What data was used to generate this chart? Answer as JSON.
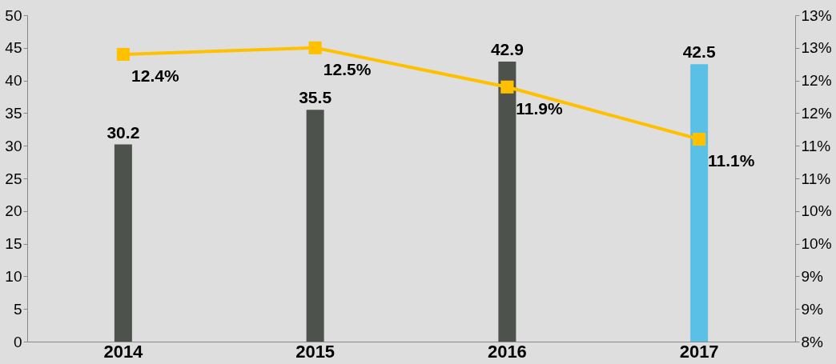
{
  "chart_data": {
    "type": "bar",
    "categories": [
      "2014",
      "2015",
      "2016",
      "2017"
    ],
    "series": [
      {
        "colors": [
          "#4d524d",
          "#4d524d",
          "#4d524d",
          "#5bc0e6"
        ],
        "values": [
          30.2,
          35.5,
          42.9,
          42.5
        ]
      },
      {
        "type": "line",
        "axis": "y2",
        "color": "#ffc000",
        "values": [
          12.4,
          12.5,
          11.9,
          11.1
        ],
        "value_labels": [
          "12.4%",
          "12.5%",
          "11.9%",
          "11.1%"
        ]
      }
    ],
    "ylim": [
      0,
      50
    ],
    "yticks": [
      0,
      5,
      10,
      15,
      20,
      25,
      30,
      35,
      40,
      45,
      50
    ],
    "y2lim": [
      8,
      13
    ],
    "y2ticks": [
      {
        "value": 8,
        "label": "8%"
      },
      {
        "value": 8.5,
        "label": "9%"
      },
      {
        "value": 9,
        "label": "9%"
      },
      {
        "value": 9.5,
        "label": "10%"
      },
      {
        "value": 10,
        "label": "10%"
      },
      {
        "value": 10.5,
        "label": "11%"
      },
      {
        "value": 11,
        "label": "11%"
      },
      {
        "value": 11.5,
        "label": "12%"
      },
      {
        "value": 12,
        "label": "12%"
      },
      {
        "value": 12.5,
        "label": "13%"
      },
      {
        "value": 13,
        "label": "13%"
      }
    ],
    "data_labels": true,
    "marker": "square"
  }
}
